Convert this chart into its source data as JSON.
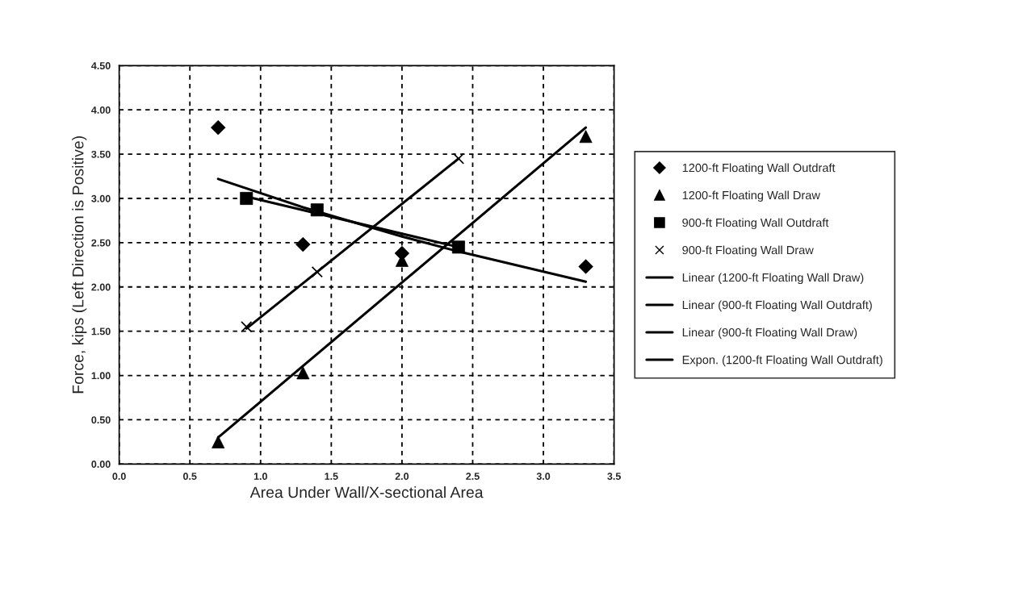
{
  "chart_data": {
    "type": "scatter",
    "xlabel": "Area Under Wall/X-sectional Area",
    "ylabel": "Force, kips (Left Direction is Positive)",
    "xlim": [
      0,
      3.5
    ],
    "ylim": [
      0,
      4.5
    ],
    "xticks": [
      {
        "value": 0,
        "label": "0.0"
      },
      {
        "value": 0.5,
        "label": "0.5"
      },
      {
        "value": 1,
        "label": "1.0"
      },
      {
        "value": 1.5,
        "label": "1.5"
      },
      {
        "value": 2,
        "label": "2.0"
      },
      {
        "value": 2.5,
        "label": "2.5"
      },
      {
        "value": 3,
        "label": "3.0"
      },
      {
        "value": 3.5,
        "label": "3.5"
      }
    ],
    "yticks": [
      {
        "value": 0,
        "label": "0.00"
      },
      {
        "value": 0.5,
        "label": "0.50"
      },
      {
        "value": 1,
        "label": "1.00"
      },
      {
        "value": 1.5,
        "label": "1.50"
      },
      {
        "value": 2,
        "label": "2.00"
      },
      {
        "value": 2.5,
        "label": "2.50"
      },
      {
        "value": 3,
        "label": "3.00"
      },
      {
        "value": 3.5,
        "label": "3.50"
      },
      {
        "value": 4,
        "label": "4.00"
      },
      {
        "value": 4.5,
        "label": "4.50"
      }
    ],
    "grid": true,
    "legend": "right",
    "series": [
      {
        "name": "1200-ft Floating Wall Outdraft",
        "marker": "diamond",
        "color": "#000000",
        "x": [
          0.7,
          1.3,
          2.0,
          3.3
        ],
        "values": [
          3.8,
          2.48,
          2.38,
          2.23
        ]
      },
      {
        "name": "1200-ft Floating Wall Draw",
        "marker": "triangle",
        "color": "#000000",
        "x": [
          0.7,
          1.3,
          2.0,
          3.3
        ],
        "values": [
          0.25,
          1.03,
          2.3,
          3.7
        ]
      },
      {
        "name": "900-ft Floating Wall Outdraft",
        "marker": "square",
        "color": "#000000",
        "x": [
          0.9,
          1.4,
          2.4
        ],
        "values": [
          3.0,
          2.87,
          2.45
        ]
      },
      {
        "name": "900-ft Floating Wall Draw",
        "marker": "cross",
        "color": "#000000",
        "x": [
          0.9,
          1.4,
          2.4
        ],
        "values": [
          1.55,
          2.17,
          3.45
        ]
      },
      {
        "name": "Linear (1200-ft Floating Wall Draw)",
        "type": "line",
        "line_style": "solid",
        "color": "#000000",
        "x": [
          0.7,
          3.3
        ],
        "values": [
          0.3,
          3.8
        ]
      },
      {
        "name": "Linear (900-ft Floating Wall Outdraft)",
        "type": "line",
        "line_style": "solid",
        "color": "#000000",
        "x": [
          0.9,
          2.4
        ],
        "values": [
          3.02,
          2.45
        ]
      },
      {
        "name": "Linear (900-ft Floating Wall Draw)",
        "type": "line",
        "line_style": "solid",
        "color": "#000000",
        "x": [
          0.9,
          2.4
        ],
        "values": [
          1.53,
          3.45
        ]
      },
      {
        "name": "Expon. (1200-ft Floating Wall Outdraft)",
        "type": "line",
        "line_style": "solid",
        "color": "#000000",
        "x": [
          0.7,
          1.3,
          2.0,
          2.4,
          3.3
        ],
        "values": [
          3.22,
          2.9,
          2.57,
          2.4,
          2.06
        ]
      }
    ]
  }
}
